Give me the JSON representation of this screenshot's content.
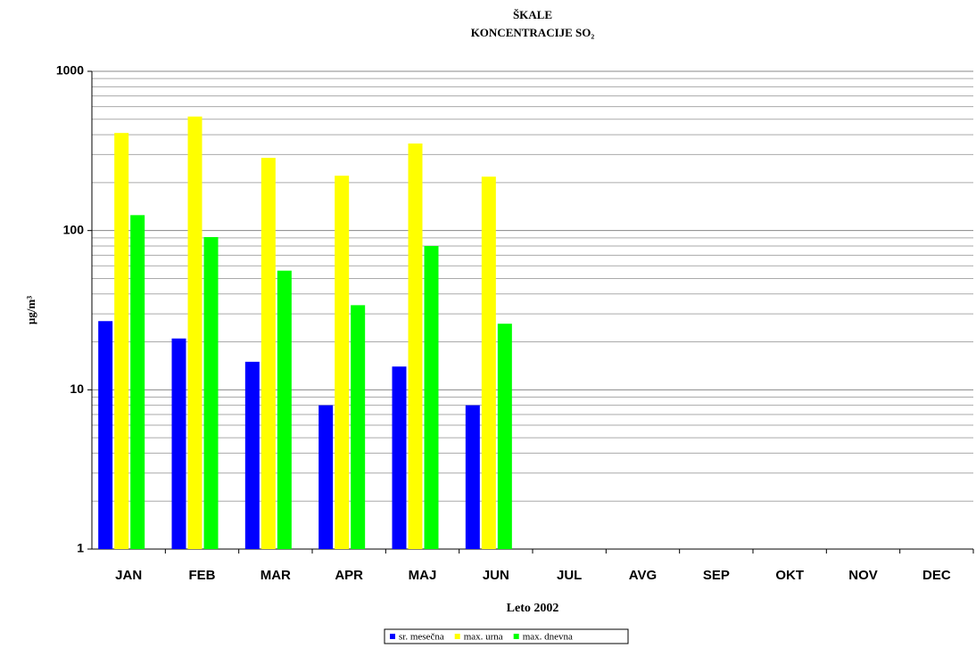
{
  "chart_data": {
    "type": "bar",
    "title": [
      "ŠKALE",
      "KONCENTRACIJE SO₂"
    ],
    "x_label": "Leto 2002",
    "y_label": "µg/m³",
    "categories": [
      "JAN",
      "FEB",
      "MAR",
      "APR",
      "MAJ",
      "JUN",
      "JUL",
      "AVG",
      "SEP",
      "OKT",
      "NOV",
      "DEC"
    ],
    "series": [
      {
        "name": "sr. mesečna",
        "color": "#0000ff",
        "values": [
          27,
          21,
          15,
          8,
          14,
          8,
          null,
          null,
          null,
          null,
          null,
          null
        ]
      },
      {
        "name": "max. urna",
        "color": "#ffff00",
        "values": [
          410,
          520,
          286,
          221,
          352,
          218,
          null,
          null,
          null,
          null,
          null,
          null
        ]
      },
      {
        "name": "max. dnevna",
        "color": "#00ff00",
        "values": [
          125,
          91,
          56,
          34,
          80,
          26,
          null,
          null,
          null,
          null,
          null,
          null
        ]
      }
    ],
    "ylim": [
      1,
      1000
    ],
    "yticks": [
      1,
      10,
      100,
      1000
    ],
    "log_scale": true,
    "grid": true,
    "legend": "bottom"
  }
}
